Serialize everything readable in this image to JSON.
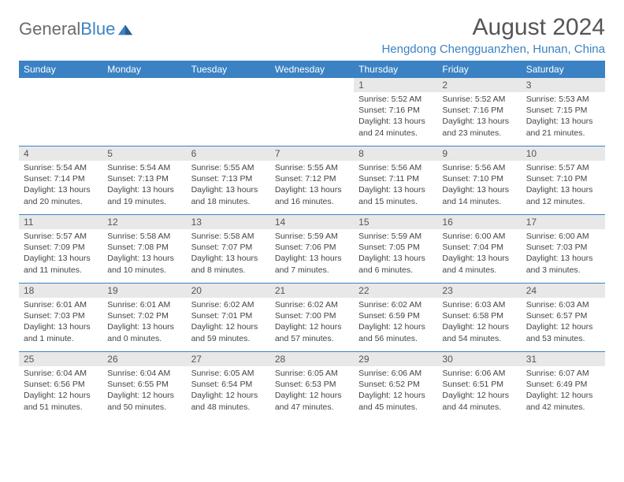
{
  "brand": {
    "name_part1": "General",
    "name_part2": "Blue"
  },
  "title": "August 2024",
  "location": "Hengdong Chengguanzhen, Hunan, China",
  "colors": {
    "accent": "#3b82c4",
    "header_text": "#555",
    "daynum_bg": "#e8e8e8"
  },
  "days_of_week": [
    "Sunday",
    "Monday",
    "Tuesday",
    "Wednesday",
    "Thursday",
    "Friday",
    "Saturday"
  ],
  "weeks": [
    [
      {
        "n": "",
        "empty": true
      },
      {
        "n": "",
        "empty": true
      },
      {
        "n": "",
        "empty": true
      },
      {
        "n": "",
        "empty": true
      },
      {
        "n": "1",
        "sr": "5:52 AM",
        "ss": "7:16 PM",
        "dl": "13 hours and 24 minutes."
      },
      {
        "n": "2",
        "sr": "5:52 AM",
        "ss": "7:16 PM",
        "dl": "13 hours and 23 minutes."
      },
      {
        "n": "3",
        "sr": "5:53 AM",
        "ss": "7:15 PM",
        "dl": "13 hours and 21 minutes."
      }
    ],
    [
      {
        "n": "4",
        "sr": "5:54 AM",
        "ss": "7:14 PM",
        "dl": "13 hours and 20 minutes."
      },
      {
        "n": "5",
        "sr": "5:54 AM",
        "ss": "7:13 PM",
        "dl": "13 hours and 19 minutes."
      },
      {
        "n": "6",
        "sr": "5:55 AM",
        "ss": "7:13 PM",
        "dl": "13 hours and 18 minutes."
      },
      {
        "n": "7",
        "sr": "5:55 AM",
        "ss": "7:12 PM",
        "dl": "13 hours and 16 minutes."
      },
      {
        "n": "8",
        "sr": "5:56 AM",
        "ss": "7:11 PM",
        "dl": "13 hours and 15 minutes."
      },
      {
        "n": "9",
        "sr": "5:56 AM",
        "ss": "7:10 PM",
        "dl": "13 hours and 14 minutes."
      },
      {
        "n": "10",
        "sr": "5:57 AM",
        "ss": "7:10 PM",
        "dl": "13 hours and 12 minutes."
      }
    ],
    [
      {
        "n": "11",
        "sr": "5:57 AM",
        "ss": "7:09 PM",
        "dl": "13 hours and 11 minutes."
      },
      {
        "n": "12",
        "sr": "5:58 AM",
        "ss": "7:08 PM",
        "dl": "13 hours and 10 minutes."
      },
      {
        "n": "13",
        "sr": "5:58 AM",
        "ss": "7:07 PM",
        "dl": "13 hours and 8 minutes."
      },
      {
        "n": "14",
        "sr": "5:59 AM",
        "ss": "7:06 PM",
        "dl": "13 hours and 7 minutes."
      },
      {
        "n": "15",
        "sr": "5:59 AM",
        "ss": "7:05 PM",
        "dl": "13 hours and 6 minutes."
      },
      {
        "n": "16",
        "sr": "6:00 AM",
        "ss": "7:04 PM",
        "dl": "13 hours and 4 minutes."
      },
      {
        "n": "17",
        "sr": "6:00 AM",
        "ss": "7:03 PM",
        "dl": "13 hours and 3 minutes."
      }
    ],
    [
      {
        "n": "18",
        "sr": "6:01 AM",
        "ss": "7:03 PM",
        "dl": "13 hours and 1 minute."
      },
      {
        "n": "19",
        "sr": "6:01 AM",
        "ss": "7:02 PM",
        "dl": "13 hours and 0 minutes."
      },
      {
        "n": "20",
        "sr": "6:02 AM",
        "ss": "7:01 PM",
        "dl": "12 hours and 59 minutes."
      },
      {
        "n": "21",
        "sr": "6:02 AM",
        "ss": "7:00 PM",
        "dl": "12 hours and 57 minutes."
      },
      {
        "n": "22",
        "sr": "6:02 AM",
        "ss": "6:59 PM",
        "dl": "12 hours and 56 minutes."
      },
      {
        "n": "23",
        "sr": "6:03 AM",
        "ss": "6:58 PM",
        "dl": "12 hours and 54 minutes."
      },
      {
        "n": "24",
        "sr": "6:03 AM",
        "ss": "6:57 PM",
        "dl": "12 hours and 53 minutes."
      }
    ],
    [
      {
        "n": "25",
        "sr": "6:04 AM",
        "ss": "6:56 PM",
        "dl": "12 hours and 51 minutes."
      },
      {
        "n": "26",
        "sr": "6:04 AM",
        "ss": "6:55 PM",
        "dl": "12 hours and 50 minutes."
      },
      {
        "n": "27",
        "sr": "6:05 AM",
        "ss": "6:54 PM",
        "dl": "12 hours and 48 minutes."
      },
      {
        "n": "28",
        "sr": "6:05 AM",
        "ss": "6:53 PM",
        "dl": "12 hours and 47 minutes."
      },
      {
        "n": "29",
        "sr": "6:06 AM",
        "ss": "6:52 PM",
        "dl": "12 hours and 45 minutes."
      },
      {
        "n": "30",
        "sr": "6:06 AM",
        "ss": "6:51 PM",
        "dl": "12 hours and 44 minutes."
      },
      {
        "n": "31",
        "sr": "6:07 AM",
        "ss": "6:49 PM",
        "dl": "12 hours and 42 minutes."
      }
    ]
  ],
  "labels": {
    "sunrise": "Sunrise:",
    "sunset": "Sunset:",
    "daylight": "Daylight:"
  }
}
